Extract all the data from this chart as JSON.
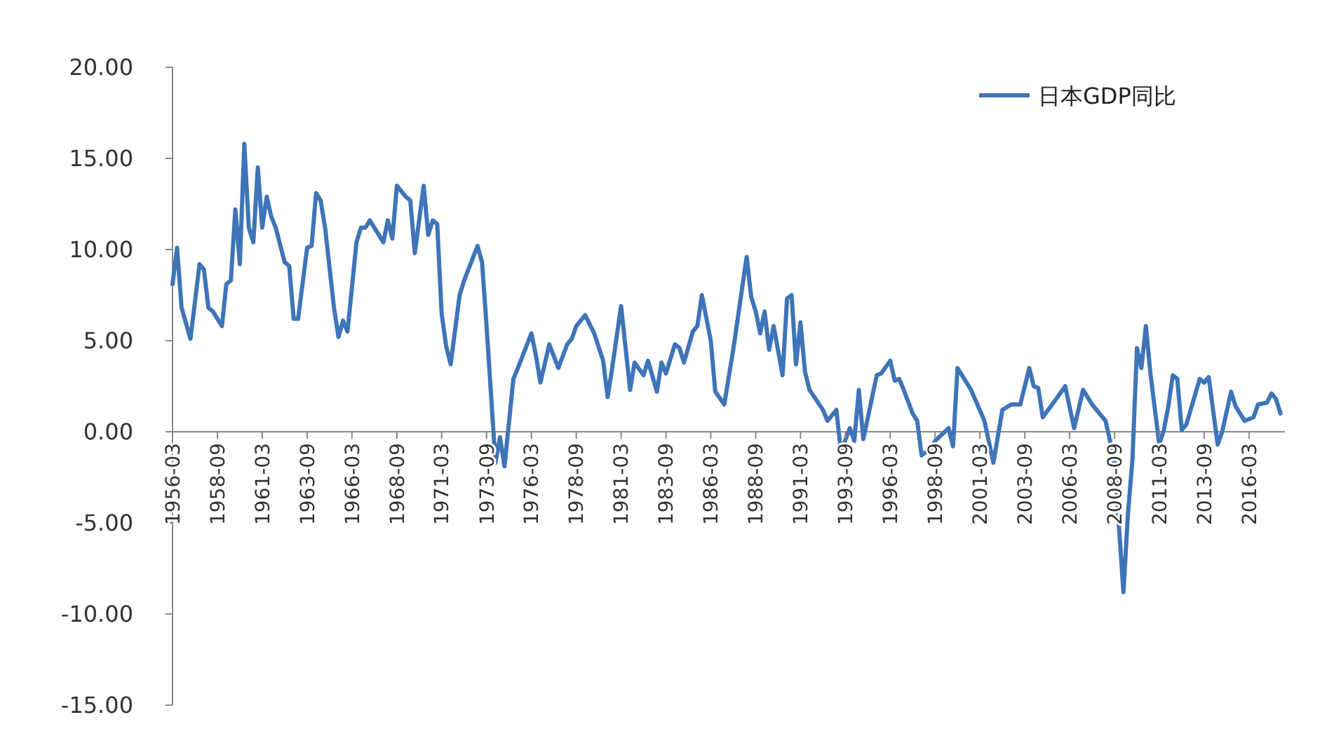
{
  "chart_data": {
    "type": "line",
    "legend": "top right",
    "xlim": [
      "1956-03",
      "2018-03"
    ],
    "ylim": [
      -15,
      20
    ],
    "xticks": [
      "1956-03",
      "1958-09",
      "1961-03",
      "1963-09",
      "1966-03",
      "1968-09",
      "1971-03",
      "1973-09",
      "1976-03",
      "1978-09",
      "1981-03",
      "1983-09",
      "1986-03",
      "1988-09",
      "1991-03",
      "1993-09",
      "1996-03",
      "1998-09",
      "2001-03",
      "2003-09",
      "2006-03",
      "2008-09",
      "2011-03",
      "2013-09",
      "2016-03"
    ],
    "yticks": [
      {
        "value": -15,
        "label": "-15.00"
      },
      {
        "value": -10,
        "label": "-10.00"
      },
      {
        "value": -5,
        "label": "-5.00"
      },
      {
        "value": 0,
        "label": "0.00"
      },
      {
        "value": 5,
        "label": "5.00"
      },
      {
        "value": 10,
        "label": "10.00"
      },
      {
        "value": 15,
        "label": "15.00"
      },
      {
        "value": 20,
        "label": "20.00"
      }
    ],
    "series": [
      {
        "name": "日本GDP同比",
        "color": "#3f74b8",
        "x": [
          "1956-03",
          "1956-06",
          "1956-09",
          "1957-03",
          "1957-09",
          "1957-12",
          "1958-03",
          "1958-06",
          "1958-12",
          "1959-03",
          "1959-06",
          "1959-09",
          "1959-12",
          "1960-03",
          "1960-06",
          "1960-09",
          "1960-12",
          "1961-03",
          "1961-06",
          "1961-09",
          "1961-12",
          "1962-06",
          "1962-09",
          "1962-12",
          "1963-03",
          "1963-09",
          "1963-12",
          "1964-03",
          "1964-06",
          "1964-09",
          "1965-03",
          "1965-06",
          "1965-09",
          "1965-12",
          "1966-06",
          "1966-09",
          "1966-12",
          "1967-03",
          "1967-06",
          "1967-12",
          "1968-03",
          "1968-06",
          "1968-09",
          "1969-03",
          "1969-06",
          "1969-09",
          "1970-03",
          "1970-06",
          "1970-09",
          "1970-12",
          "1971-03",
          "1971-06",
          "1971-09",
          "1972-03",
          "1972-06",
          "1973-03",
          "1973-06",
          "1973-09",
          "1974-03",
          "1974-06",
          "1974-09",
          "1975-03",
          "1975-06",
          "1976-03",
          "1976-06",
          "1976-09",
          "1977-03",
          "1977-09",
          "1978-03",
          "1978-06",
          "1978-09",
          "1979-03",
          "1979-09",
          "1980-03",
          "1980-06",
          "1980-09",
          "1981-03",
          "1981-09",
          "1981-12",
          "1982-06",
          "1982-09",
          "1983-03",
          "1983-06",
          "1983-09",
          "1984-03",
          "1984-06",
          "1984-09",
          "1985-03",
          "1985-06",
          "1985-09",
          "1986-03",
          "1986-06",
          "1986-12",
          "1987-06",
          "1988-03",
          "1988-06",
          "1988-09",
          "1988-12",
          "1989-03",
          "1989-06",
          "1989-09",
          "1990-03",
          "1990-06",
          "1990-09",
          "1990-12",
          "1991-03",
          "1991-06",
          "1991-09",
          "1992-06",
          "1992-09",
          "1993-03",
          "1993-06",
          "1993-12",
          "1994-03",
          "1994-06",
          "1994-09",
          "1995-06",
          "1995-09",
          "1996-03",
          "1996-06",
          "1996-09",
          "1996-12",
          "1997-06",
          "1997-09",
          "1997-12",
          "1998-06",
          "1998-09",
          "1999-06",
          "1999-09",
          "1999-12",
          "2000-06",
          "2000-09",
          "2001-06",
          "2001-12",
          "2002-06",
          "2002-12",
          "2003-06",
          "2003-12",
          "2004-03",
          "2004-06",
          "2004-09",
          "2005-06",
          "2005-12",
          "2006-06",
          "2006-12",
          "2007-06",
          "2008-03",
          "2008-06",
          "2008-09",
          "2009-03",
          "2009-06",
          "2009-09",
          "2009-12",
          "2010-03",
          "2010-06",
          "2010-09",
          "2011-03",
          "2011-06",
          "2011-09",
          "2011-12",
          "2012-03",
          "2012-06",
          "2012-09",
          "2013-06",
          "2013-09",
          "2013-12",
          "2014-06",
          "2014-09",
          "2015-03",
          "2015-06",
          "2015-12",
          "2016-06",
          "2016-09",
          "2017-03",
          "2017-06",
          "2017-09",
          "2017-12"
        ],
        "values": [
          8.1,
          10.1,
          6.8,
          5.1,
          9.2,
          8.9,
          6.8,
          6.6,
          5.8,
          8.1,
          8.3,
          12.2,
          9.2,
          15.8,
          11.2,
          10.4,
          14.5,
          11.2,
          12.9,
          11.8,
          11.2,
          9.3,
          9.1,
          6.2,
          6.2,
          10.1,
          10.2,
          13.1,
          12.7,
          11.2,
          6.8,
          5.2,
          6.1,
          5.5,
          10.4,
          11.2,
          11.2,
          11.6,
          11.2,
          10.4,
          11.6,
          10.6,
          13.5,
          12.9,
          12.7,
          9.8,
          13.5,
          10.8,
          11.6,
          11.4,
          6.5,
          4.7,
          3.7,
          7.5,
          8.3,
          10.2,
          9.3,
          5.8,
          -1.7,
          -0.3,
          -1.9,
          2.9,
          3.5,
          5.4,
          4.2,
          2.7,
          4.8,
          3.5,
          4.8,
          5.1,
          5.8,
          6.4,
          5.4,
          3.9,
          1.9,
          3.5,
          6.9,
          2.3,
          3.8,
          3.1,
          3.9,
          2.2,
          3.8,
          3.2,
          4.8,
          4.6,
          3.8,
          5.5,
          5.8,
          7.5,
          5.0,
          2.2,
          1.5,
          4.5,
          9.6,
          7.4,
          6.6,
          5.4,
          6.6,
          4.5,
          5.8,
          3.1,
          7.3,
          7.5,
          3.7,
          6.0,
          3.3,
          2.3,
          1.2,
          0.6,
          1.2,
          -1.1,
          0.2,
          -0.5,
          2.3,
          -0.4,
          3.1,
          3.2,
          3.9,
          2.8,
          2.9,
          2.3,
          1.0,
          0.6,
          -1.3,
          -0.9,
          -0.5,
          0.2,
          -0.8,
          3.5,
          2.7,
          2.3,
          0.6,
          -1.7,
          1.2,
          1.5,
          1.5,
          3.5,
          2.5,
          2.4,
          0.8,
          1.8,
          2.5,
          0.2,
          2.3,
          1.5,
          0.6,
          -0.5,
          -1.7,
          -8.8,
          -4.5,
          -1.5,
          4.6,
          3.5,
          5.8,
          3.2,
          -0.7,
          0.1,
          1.4,
          3.1,
          2.9,
          0.1,
          0.4,
          2.9,
          2.7,
          3.0,
          -0.7,
          0.0,
          2.2,
          1.4,
          0.6,
          0.8,
          1.5,
          1.6,
          2.1,
          1.8,
          1.0
        ]
      }
    ]
  }
}
